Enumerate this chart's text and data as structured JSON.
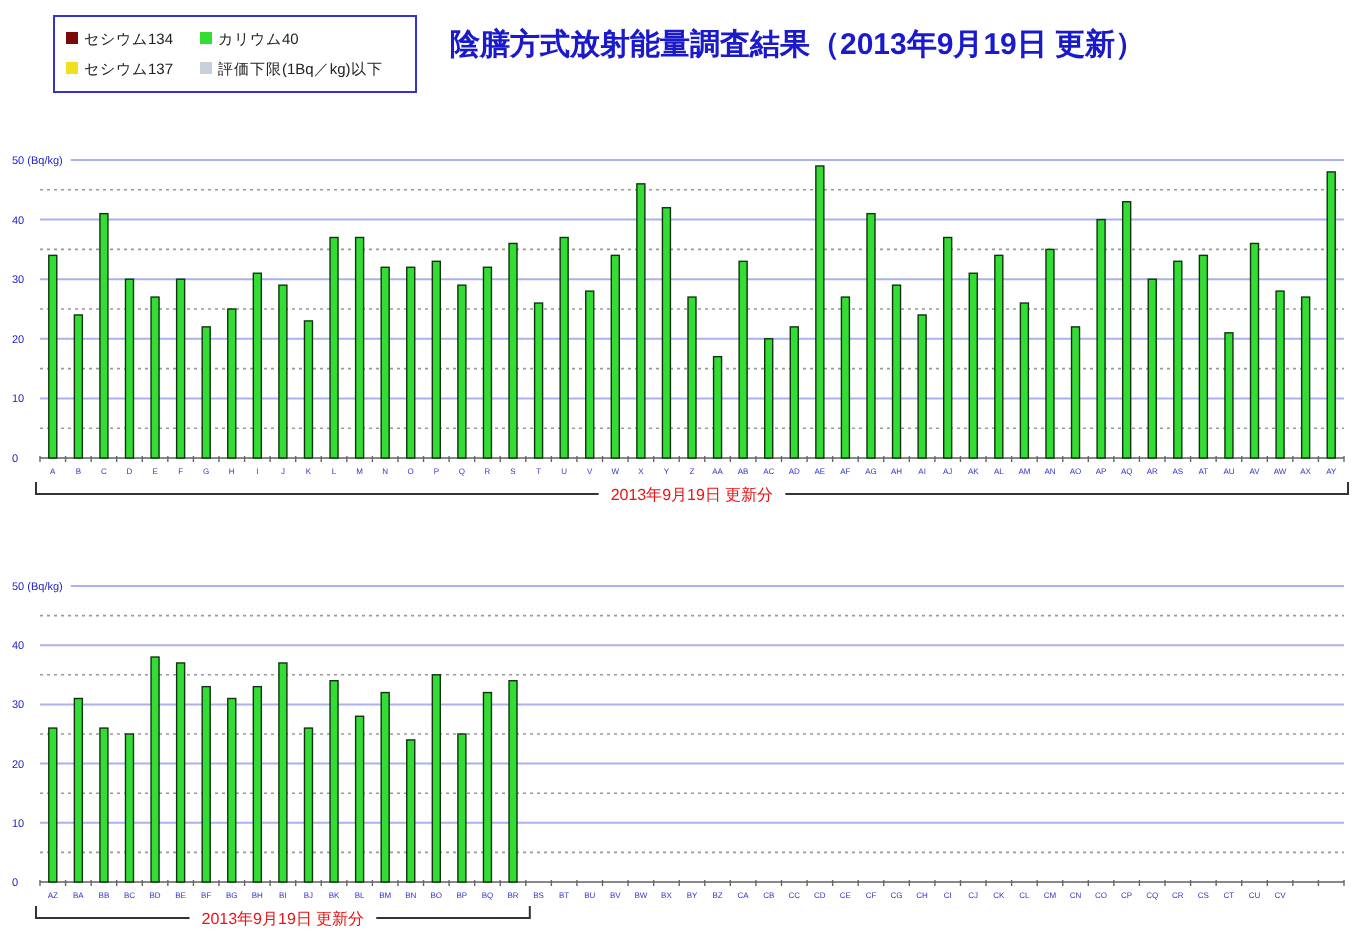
{
  "chart_data": [
    {
      "type": "bar",
      "title": "陰膳方式放射能量調査結果（2013年9月19日 更新）",
      "legend": "top left",
      "grid": "y",
      "categories": [
        "A",
        "B",
        "C",
        "D",
        "E",
        "F",
        "G",
        "H",
        "I",
        "J",
        "K",
        "L",
        "M",
        "N",
        "O",
        "P",
        "Q",
        "R",
        "S",
        "T",
        "U",
        "V",
        "W",
        "X",
        "Y",
        "Z",
        "AA",
        "AB",
        "AC",
        "AD",
        "AE",
        "AF",
        "AG",
        "AH",
        "AI",
        "AJ",
        "AK",
        "AL",
        "AM",
        "AN",
        "AO",
        "AP",
        "AQ",
        "AR",
        "AS",
        "AT",
        "AU",
        "AV",
        "AW",
        "AX",
        "AY"
      ],
      "ylim": [
        0,
        50
      ],
      "yticks": [
        0,
        10,
        20,
        30,
        40,
        {
          "value": 50,
          "label": "50 (Bq/kg)"
        }
      ],
      "annotations": [
        "2013年9月19日 更新分"
      ],
      "series": [
        {
          "name": "セシウム134",
          "color": "#7a0a0a",
          "values": [
            null,
            null,
            null,
            null,
            null,
            null,
            null,
            null,
            null,
            null,
            null,
            null,
            null,
            null,
            null,
            null,
            null,
            null,
            null,
            null,
            null,
            null,
            null,
            null,
            null,
            null,
            null,
            null,
            null,
            null,
            null,
            null,
            null,
            null,
            null,
            null,
            null,
            null,
            null,
            null,
            null,
            null,
            null,
            null,
            null,
            null,
            null,
            null,
            null,
            null,
            null
          ]
        },
        {
          "name": "カリウム40",
          "color": "#33dd33",
          "values": [
            34,
            24,
            41,
            30,
            27,
            30,
            22,
            25,
            31,
            29,
            23,
            37,
            37,
            32,
            32,
            33,
            29,
            32,
            36,
            26,
            37,
            28,
            34,
            46,
            42,
            27,
            17,
            33,
            20,
            22,
            49,
            27,
            41,
            29,
            24,
            37,
            31,
            34,
            26,
            35,
            22,
            40,
            43,
            30,
            33,
            34,
            21,
            36,
            28,
            27,
            48
          ]
        },
        {
          "name": "セシウム137",
          "color": "#f0e020",
          "values": [
            null,
            null,
            null,
            null,
            null,
            null,
            null,
            null,
            null,
            null,
            null,
            null,
            null,
            null,
            null,
            null,
            null,
            null,
            null,
            null,
            null,
            null,
            null,
            null,
            null,
            null,
            null,
            null,
            null,
            null,
            null,
            null,
            null,
            null,
            null,
            null,
            null,
            null,
            null,
            null,
            null,
            null,
            null,
            null,
            null,
            null,
            null,
            null,
            null,
            null,
            null
          ]
        },
        {
          "name": "評価下限(1Bq／kg)以下",
          "color": "#c8d0dc",
          "values": [
            null,
            null,
            null,
            null,
            null,
            null,
            null,
            null,
            null,
            null,
            null,
            null,
            null,
            null,
            null,
            null,
            null,
            null,
            null,
            null,
            null,
            null,
            null,
            null,
            null,
            null,
            null,
            null,
            null,
            null,
            null,
            null,
            null,
            null,
            null,
            null,
            null,
            null,
            null,
            null,
            null,
            null,
            null,
            null,
            null,
            null,
            null,
            null,
            null,
            null,
            null
          ]
        }
      ]
    },
    {
      "type": "bar",
      "grid": "y",
      "categories": [
        "AZ",
        "BA",
        "BB",
        "BC",
        "BD",
        "BE",
        "BF",
        "BG",
        "BH",
        "BI",
        "BJ",
        "BK",
        "BL",
        "BM",
        "BN",
        "BO",
        "BP",
        "BQ",
        "BR",
        "BS",
        "BT",
        "BU",
        "BV",
        "BW",
        "BX",
        "BY",
        "BZ",
        "CA",
        "CB",
        "CC",
        "CD",
        "CE",
        "CF",
        "CG",
        "CH",
        "CI",
        "CJ",
        "CK",
        "CL",
        "CM",
        "CN",
        "CO",
        "CP",
        "CQ",
        "CR",
        "CS",
        "CT",
        "CU",
        "CV",
        null,
        null
      ],
      "ylim": [
        0,
        50
      ],
      "yticks": [
        0,
        10,
        20,
        30,
        40,
        {
          "value": 50,
          "label": "50 (Bq/kg)"
        }
      ],
      "annotations": [
        "2013年9月19日 更新分"
      ],
      "series": [
        {
          "color": "#33dd33",
          "values": [
            26,
            31,
            26,
            25,
            38,
            37,
            33,
            31,
            33,
            37,
            26,
            34,
            28,
            32,
            24,
            35,
            25,
            32,
            34,
            null,
            null,
            null,
            null,
            null,
            null,
            null,
            null,
            null,
            null,
            null,
            null,
            null,
            null,
            null,
            null,
            null,
            null,
            null,
            null,
            null,
            null,
            null,
            null,
            null,
            null,
            null,
            null,
            null,
            null,
            null,
            null
          ]
        }
      ]
    }
  ]
}
